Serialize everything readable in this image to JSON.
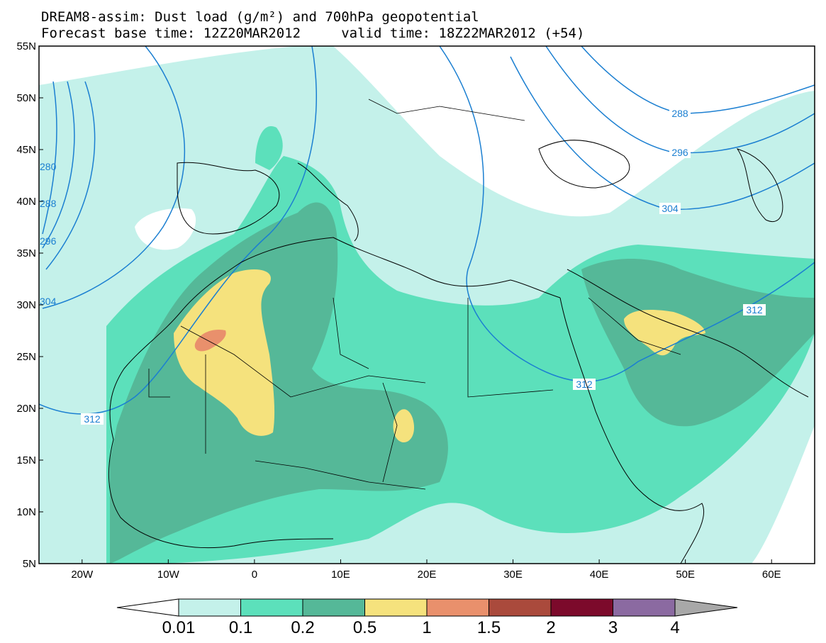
{
  "title": {
    "line1": "DREAM8-assim: Dust load (g/m²) and 700hPa geopotential",
    "line2": "Forecast base time: 12Z20MAR2012     valid time: 18Z22MAR2012 (+54)"
  },
  "axes": {
    "lat_ticks": [
      "55N",
      "50N",
      "45N",
      "40N",
      "35N",
      "30N",
      "25N",
      "20N",
      "15N",
      "10N",
      "5N"
    ],
    "lon_ticks": [
      "20W",
      "10W",
      "0",
      "10E",
      "20E",
      "30E",
      "40E",
      "50E",
      "60E"
    ],
    "lon_range": [
      -25,
      65
    ],
    "lat_range": [
      5,
      55
    ]
  },
  "colorbar": {
    "labels": [
      "0.01",
      "0.1",
      "0.2",
      "0.5",
      "1",
      "1.5",
      "2",
      "3",
      "4"
    ],
    "colors": [
      "#c4f1ea",
      "#5ce0bb",
      "#55b898",
      "#f5e27d",
      "#e9906c",
      "#aa4a3c",
      "#7c0a2b",
      "#8b6aa1"
    ],
    "under_color": "#ffffff",
    "over_color": "#a8a8a8"
  },
  "contours": {
    "color": "#1b7fd1",
    "labels": [
      "288",
      "296",
      "304",
      "312",
      "312",
      "312",
      "280",
      "288",
      "296",
      "304"
    ]
  }
}
